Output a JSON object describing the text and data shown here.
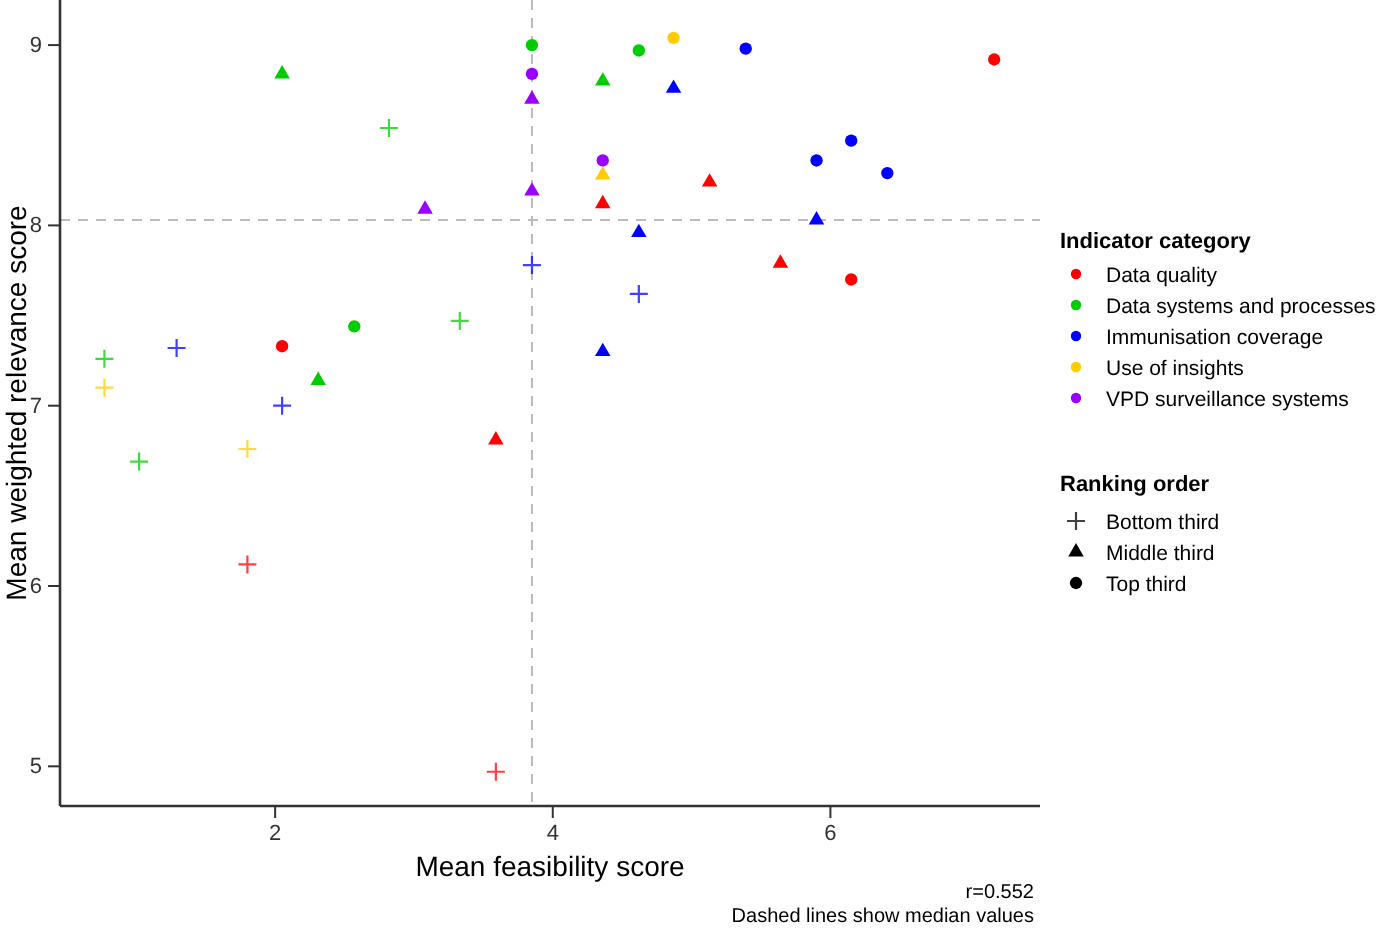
{
  "chart_data": {
    "type": "scatter",
    "xlabel": "Mean feasibility score",
    "ylabel": "Mean weighted relevance score",
    "legend_title": "Indicator category",
    "legend": "right",
    "grid": false,
    "xlim": [
      0.45,
      7.51
    ],
    "xticks": [
      2,
      4,
      6
    ],
    "ylim": [
      4.78,
      9.25
    ],
    "yticks": [
      5,
      6,
      7,
      8,
      9
    ],
    "ref_lines": [
      {
        "axis": "x",
        "value": 3.85,
        "color": "#bbbbbb",
        "line_style": "dashed"
      },
      {
        "axis": "y",
        "value": 8.03,
        "color": "#bbbbbb",
        "line_style": "dashed"
      }
    ],
    "annotations": [
      "Ranking order",
      "Bottom third",
      "Middle third",
      "Top third",
      "r=0.552",
      "Dashed lines show median values"
    ],
    "series": [
      {
        "name": "Data quality",
        "color": "#ff0000",
        "marker": "circle",
        "x": [
          2.05,
          7.18,
          6.15
        ],
        "values": [
          7.33,
          8.92,
          7.7
        ]
      },
      {
        "name": "Data systems and processes",
        "color": "#00cc00",
        "marker": "circle",
        "x": [
          3.85,
          2.57,
          4.62
        ],
        "values": [
          9.0,
          7.44,
          8.97
        ]
      },
      {
        "name": "Immunisation coverage",
        "color": "#0000ff",
        "marker": "circle",
        "x": [
          5.39,
          6.15,
          5.9,
          6.41
        ],
        "values": [
          8.98,
          8.47,
          8.36,
          8.29
        ]
      },
      {
        "name": "Use of insights",
        "color": "#ffcc00",
        "marker": "circle",
        "x": [
          4.87
        ],
        "values": [
          9.04
        ]
      },
      {
        "name": "VPD surveillance systems",
        "color": "#9900ff",
        "marker": "circle",
        "x": [
          3.85,
          4.36
        ],
        "values": [
          8.84,
          8.36
        ]
      },
      {
        "color": "#ff0000",
        "marker": "triangle",
        "x": [
          3.59,
          5.13,
          4.36,
          5.64
        ],
        "values": [
          6.81,
          8.24,
          8.12,
          7.79
        ]
      },
      {
        "color": "#00cc00",
        "marker": "triangle",
        "x": [
          2.05,
          2.31,
          4.36
        ],
        "values": [
          8.84,
          7.14,
          8.8
        ]
      },
      {
        "color": "#0000ff",
        "marker": "triangle",
        "x": [
          4.87,
          5.9,
          4.62,
          4.36
        ],
        "values": [
          8.76,
          8.03,
          7.96,
          7.3
        ]
      },
      {
        "color": "#ffcc00",
        "marker": "triangle",
        "x": [
          4.36
        ],
        "values": [
          8.28
        ]
      },
      {
        "color": "#9900ff",
        "marker": "triangle",
        "x": [
          3.08,
          3.85,
          3.85
        ],
        "values": [
          8.09,
          8.7,
          8.19
        ]
      },
      {
        "color": "#ff0000",
        "marker": "cross",
        "x": [
          1.8,
          3.59
        ],
        "values": [
          6.12,
          4.97
        ]
      },
      {
        "color": "#00cc00",
        "marker": "cross",
        "x": [
          2.82,
          3.33,
          0.77,
          1.02
        ],
        "values": [
          8.54,
          7.47,
          7.26,
          6.69
        ]
      },
      {
        "color": "#0000ff",
        "marker": "cross",
        "x": [
          3.85,
          1.29,
          2.05,
          4.62
        ],
        "values": [
          7.78,
          7.32,
          7.0,
          7.62
        ]
      },
      {
        "color": "#ffcc00",
        "marker": "cross",
        "x": [
          0.77,
          1.8
        ],
        "values": [
          7.1,
          6.76
        ]
      }
    ]
  }
}
